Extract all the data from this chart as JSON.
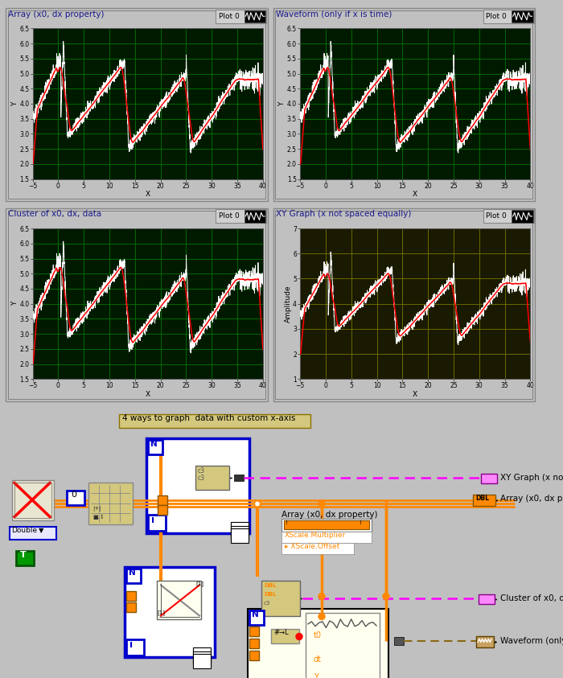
{
  "chart_titles": [
    "Array (x0, dx property)",
    "Waveform (only if x is time)",
    "Cluster of x0, dx, data",
    "XY Graph (x not spaced equally)"
  ],
  "x_ticks": [
    -5,
    0,
    5,
    10,
    15,
    20,
    25,
    30,
    35,
    40
  ],
  "y_ticks_123": [
    1.5,
    2.0,
    2.5,
    3.0,
    3.5,
    4.0,
    4.5,
    5.0,
    5.5,
    6.0,
    6.5
  ],
  "y_ticks_4": [
    1,
    2,
    3,
    4,
    5,
    6,
    7
  ],
  "xlim": [
    -5,
    40
  ],
  "ylim_123": [
    1.5,
    6.5
  ],
  "ylim_4": [
    1,
    7
  ],
  "bg_green": "#001a00",
  "bg_olive": "#1a1a00",
  "grid_green": "#007700",
  "grid_olive": "#777700",
  "panel_gray": "#c0c0c0",
  "orange": "#ff8800",
  "magenta": "#ff00ff",
  "blue_border": "#0000cc",
  "annotation_text": "4 ways to graph  data with custom x-axis",
  "annotation_bg": "#d4c87e",
  "title_color": "#1a1a8c",
  "plot_label_color": "#1a1a8c"
}
